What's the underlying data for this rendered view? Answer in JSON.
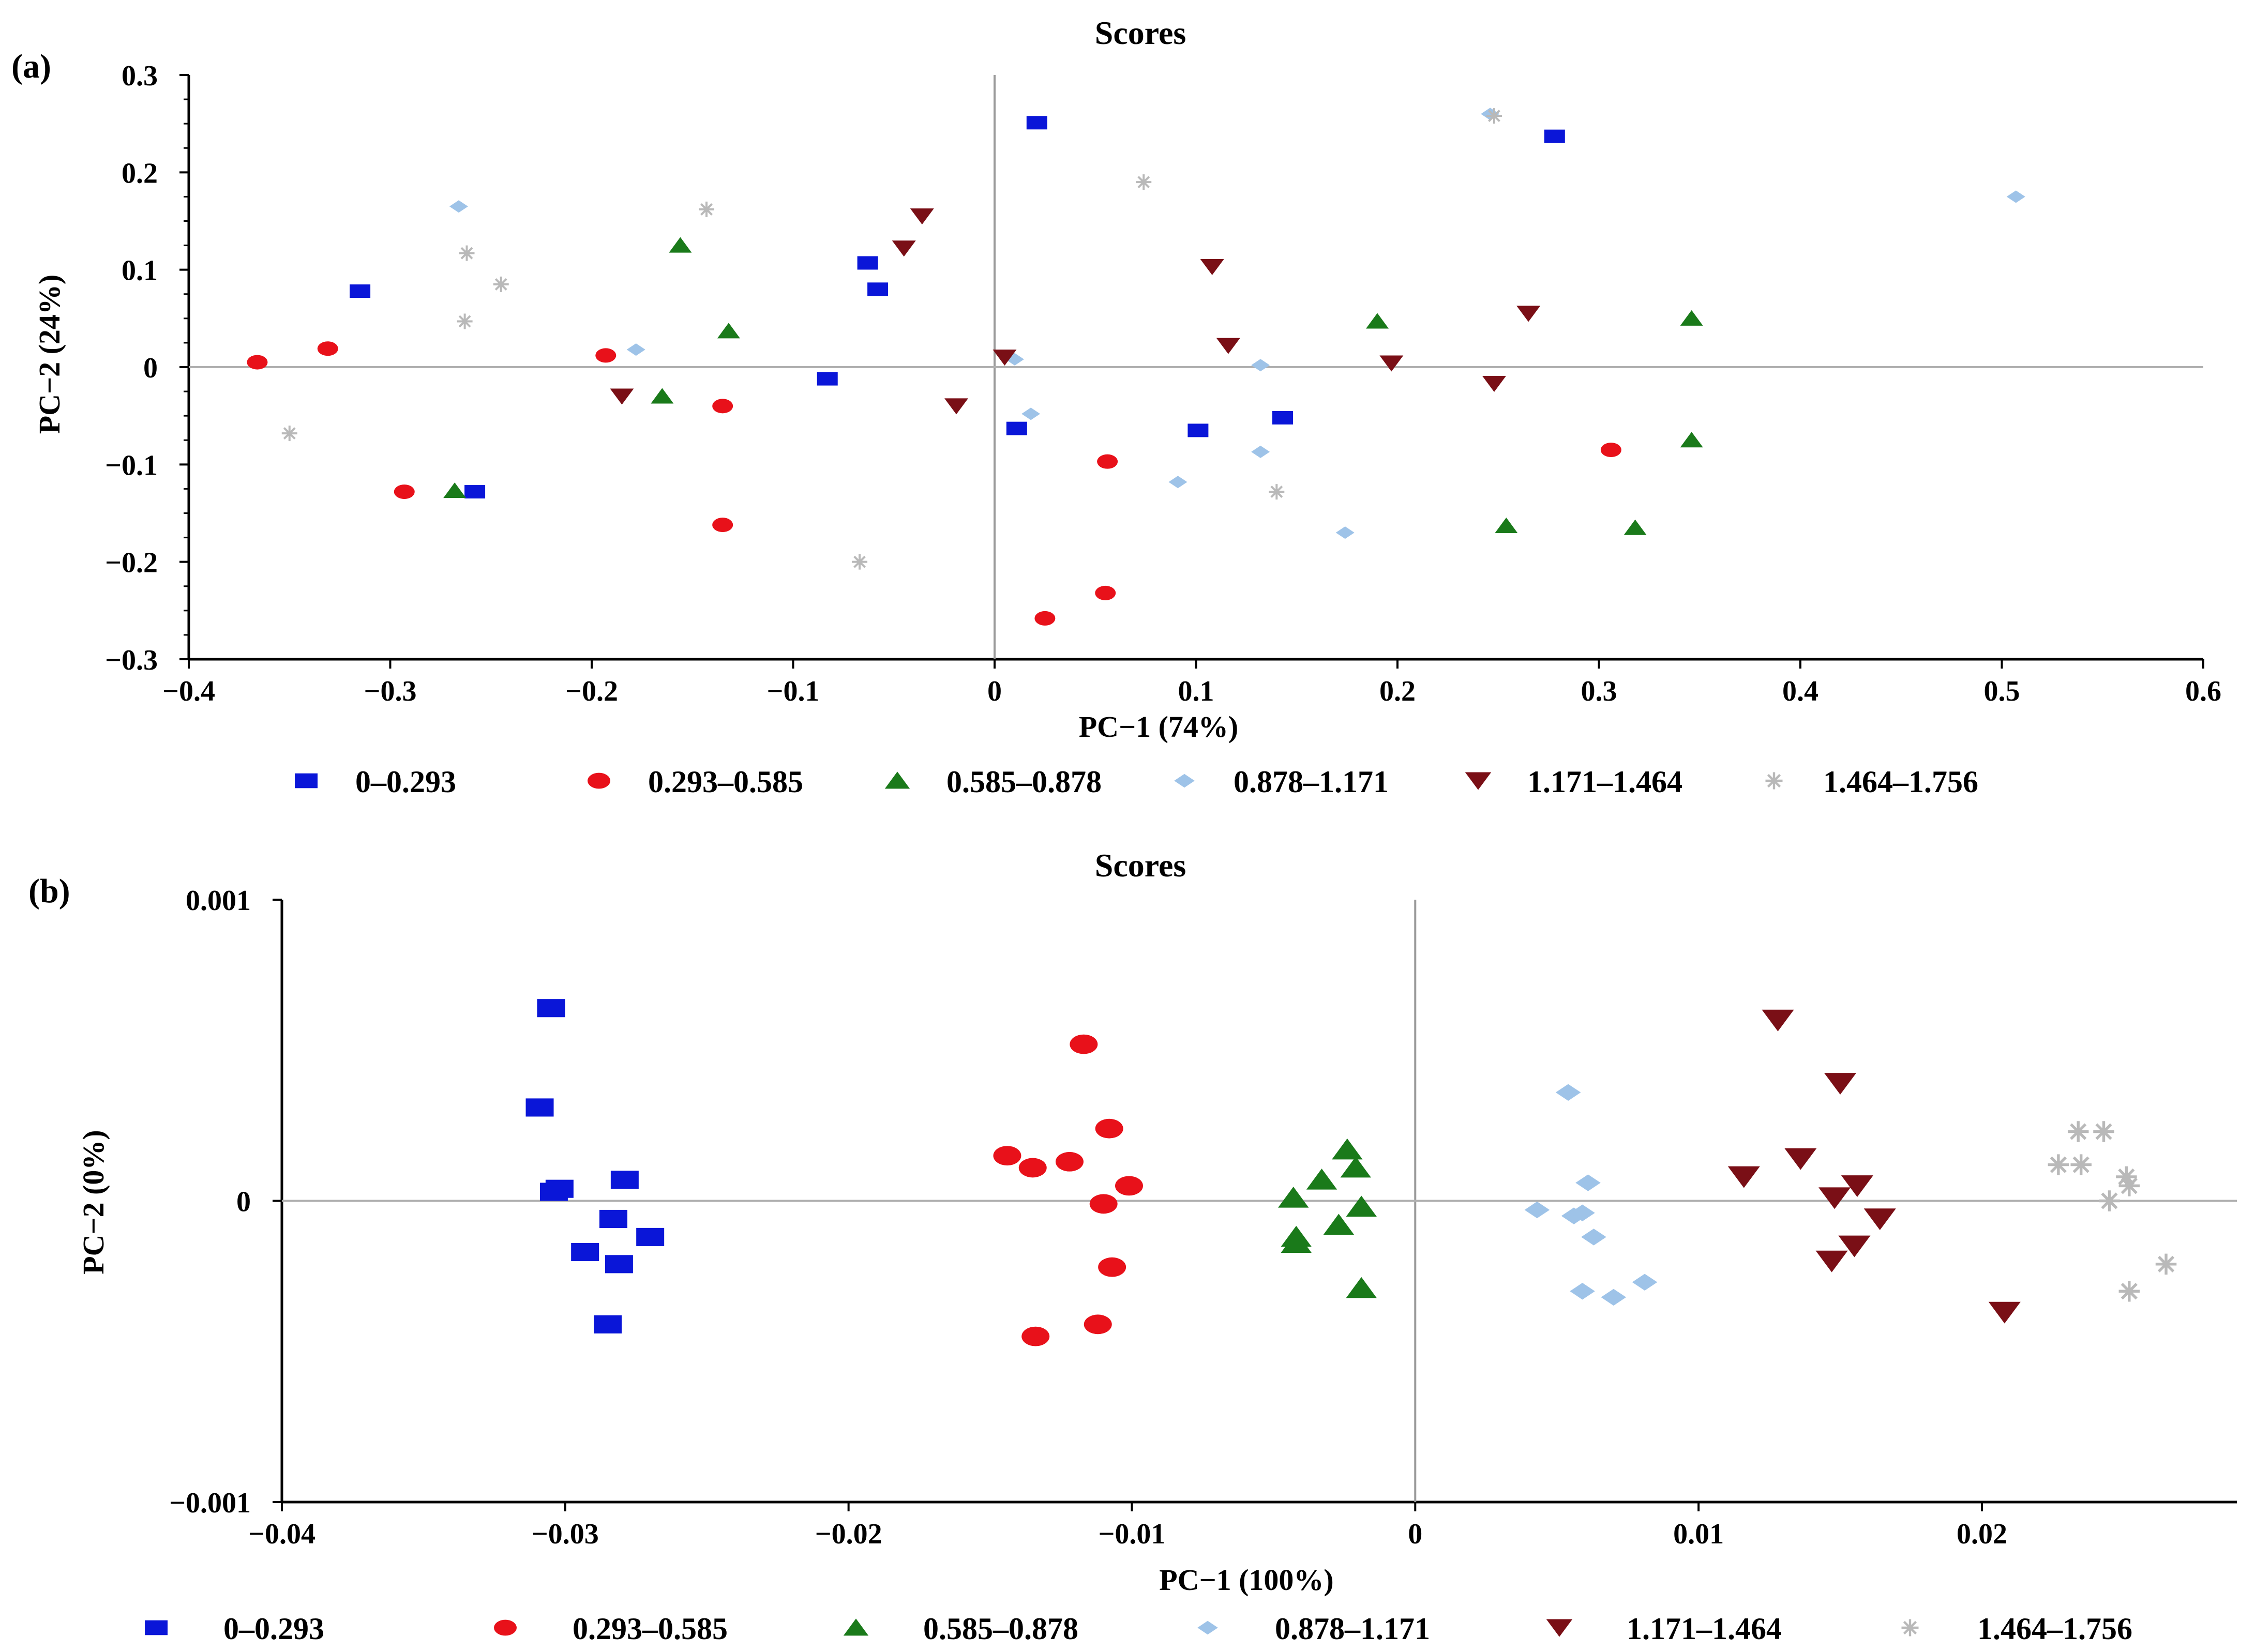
{
  "chart_data": [
    {
      "panel": "(a)",
      "type": "scatter",
      "title": "Scores",
      "xlabel": "PC−1 (74%)",
      "ylabel": "PC−2 (24%)",
      "xlim": [
        -0.4,
        0.6
      ],
      "ylim": [
        -0.3,
        0.3
      ],
      "xticks": [
        -0.4,
        -0.3,
        -0.2,
        -0.1,
        0,
        0.1,
        0.2,
        0.3,
        0.4,
        0.5,
        0.6
      ],
      "xtick_labels": [
        "−0.4",
        "−0.3",
        "−0.2",
        "−0.1",
        "0",
        "0.1",
        "0.2",
        "0.3",
        "0.4",
        "0.5",
        "0.6"
      ],
      "yticks": [
        0.3,
        0.2,
        0.1,
        0,
        -0.1,
        -0.2,
        -0.3
      ],
      "ytick_labels": [
        "0.3",
        "0.2",
        "0.1",
        "0",
        "−0.1",
        "−0.2",
        "−0.3"
      ],
      "grid": false,
      "legend_position": "bottom",
      "series": [
        {
          "name": "0–0.293",
          "marker": "square",
          "color": "#0a16d8",
          "points": [
            [
              -0.315,
              0.078
            ],
            [
              -0.258,
              -0.128
            ],
            [
              -0.083,
              -0.012
            ],
            [
              -0.063,
              0.107
            ],
            [
              -0.058,
              0.08
            ],
            [
              0.021,
              0.251
            ],
            [
              0.011,
              -0.063
            ],
            [
              0.101,
              -0.065
            ],
            [
              0.143,
              -0.052
            ],
            [
              0.278,
              0.237
            ]
          ]
        },
        {
          "name": "0.293–0.585",
          "marker": "ellipse",
          "color": "#e8111a",
          "points": [
            [
              -0.366,
              0.005
            ],
            [
              -0.331,
              0.019
            ],
            [
              -0.293,
              -0.128
            ],
            [
              -0.193,
              0.012
            ],
            [
              -0.135,
              -0.04
            ],
            [
              -0.135,
              -0.162
            ],
            [
              0.025,
              -0.258
            ],
            [
              0.055,
              -0.232
            ],
            [
              0.056,
              -0.097
            ],
            [
              0.306,
              -0.085
            ]
          ]
        },
        {
          "name": "0.585–0.878",
          "marker": "triangle-up",
          "color": "#1a7a1a",
          "points": [
            [
              -0.268,
              -0.127
            ],
            [
              -0.165,
              -0.03
            ],
            [
              -0.156,
              0.125
            ],
            [
              -0.132,
              0.037
            ],
            [
              0.19,
              0.047
            ],
            [
              0.254,
              -0.163
            ],
            [
              0.318,
              -0.165
            ],
            [
              0.346,
              0.05
            ],
            [
              0.346,
              -0.075
            ]
          ]
        },
        {
          "name": "0.878–1.171",
          "marker": "diamond",
          "color": "#9ec3e8",
          "points": [
            [
              -0.266,
              0.165
            ],
            [
              -0.178,
              0.018
            ],
            [
              0.01,
              0.008
            ],
            [
              0.018,
              -0.048
            ],
            [
              0.091,
              -0.118
            ],
            [
              0.132,
              0.002
            ],
            [
              0.132,
              -0.087
            ],
            [
              0.174,
              -0.17
            ],
            [
              0.246,
              0.26
            ],
            [
              0.507,
              0.175
            ]
          ]
        },
        {
          "name": "1.171–1.464",
          "marker": "triangle-down",
          "color": "#7a0f16",
          "points": [
            [
              -0.185,
              -0.03
            ],
            [
              -0.045,
              0.122
            ],
            [
              -0.036,
              0.155
            ],
            [
              -0.019,
              -0.04
            ],
            [
              0.005,
              0.01
            ],
            [
              0.108,
              0.103
            ],
            [
              0.116,
              0.022
            ],
            [
              0.197,
              0.004
            ],
            [
              0.248,
              -0.017
            ],
            [
              0.265,
              0.055
            ]
          ]
        },
        {
          "name": "1.464–1.756",
          "marker": "star",
          "color": "#b9b9b9",
          "points": [
            [
              -0.35,
              -0.068
            ],
            [
              -0.262,
              0.117
            ],
            [
              -0.263,
              0.047
            ],
            [
              -0.245,
              0.085
            ],
            [
              -0.143,
              0.162
            ],
            [
              -0.067,
              -0.2
            ],
            [
              0.074,
              0.19
            ],
            [
              0.14,
              -0.128
            ],
            [
              0.248,
              0.258
            ]
          ]
        }
      ]
    },
    {
      "panel": "(b)",
      "type": "scatter",
      "title": "Scores",
      "xlabel": "PC−1 (100%)",
      "ylabel": "PC−2 (0%)",
      "xlim": [
        -0.04,
        0.029
      ],
      "ylim": [
        -0.001,
        0.001
      ],
      "xticks": [
        -0.04,
        -0.03,
        -0.02,
        -0.01,
        0,
        0.01,
        0.02
      ],
      "xtick_labels": [
        "−0.04",
        "−0.03",
        "−0.02",
        "−0.01",
        "0",
        "0.01",
        "0.02"
      ],
      "yticks": [
        0.001,
        0,
        -0.001
      ],
      "ytick_labels": [
        "0.001",
        "0",
        "−0.001"
      ],
      "grid": false,
      "legend_position": "bottom",
      "series": [
        {
          "name": "0–0.293",
          "marker": "square",
          "color": "#0a16d8",
          "points": [
            [
              -0.0305,
              0.00064
            ],
            [
              -0.0309,
              0.00031
            ],
            [
              -0.0304,
              3e-05
            ],
            [
              -0.0302,
              4e-05
            ],
            [
              -0.0279,
              7e-05
            ],
            [
              -0.0283,
              -6e-05
            ],
            [
              -0.0293,
              -0.00017
            ],
            [
              -0.0281,
              -0.00021
            ],
            [
              -0.027,
              -0.00012
            ],
            [
              -0.0285,
              -0.00041
            ]
          ]
        },
        {
          "name": "0.293–0.585",
          "marker": "ellipse",
          "color": "#e8111a",
          "points": [
            [
              -0.0117,
              0.00052
            ],
            [
              -0.0108,
              0.00024
            ],
            [
              -0.0144,
              0.00015
            ],
            [
              -0.0135,
              0.00011
            ],
            [
              -0.0122,
              0.00013
            ],
            [
              -0.0101,
              5e-05
            ],
            [
              -0.011,
              -1e-05
            ],
            [
              -0.0107,
              -0.00022
            ],
            [
              -0.0112,
              -0.00041
            ],
            [
              -0.0134,
              -0.00045
            ]
          ]
        },
        {
          "name": "0.585–0.878",
          "marker": "triangle-up",
          "color": "#1a7a1a",
          "points": [
            [
              -0.0024,
              0.00017
            ],
            [
              -0.0021,
              0.00011
            ],
            [
              -0.0033,
              7e-05
            ],
            [
              -0.0043,
              1e-05
            ],
            [
              -0.0019,
              -2e-05
            ],
            [
              -0.0027,
              -8e-05
            ],
            [
              -0.0042,
              -0.00012
            ],
            [
              -0.0042,
              -0.00014
            ],
            [
              -0.0019,
              -0.00029
            ]
          ]
        },
        {
          "name": "0.878–1.171",
          "marker": "diamond",
          "color": "#9ec3e8",
          "points": [
            [
              0.0054,
              0.00036
            ],
            [
              0.0061,
              6e-05
            ],
            [
              0.0043,
              -3e-05
            ],
            [
              0.0056,
              -5e-05
            ],
            [
              0.0059,
              -4e-05
            ],
            [
              0.0063,
              -0.00012
            ],
            [
              0.0081,
              -0.00027
            ],
            [
              0.0059,
              -0.0003
            ],
            [
              0.007,
              -0.00032
            ]
          ]
        },
        {
          "name": "1.171–1.464",
          "marker": "triangle-down",
          "color": "#7a0f16",
          "points": [
            [
              0.0128,
              0.0006
            ],
            [
              0.015,
              0.00039
            ],
            [
              0.0136,
              0.00014
            ],
            [
              0.0116,
              8e-05
            ],
            [
              0.0156,
              5e-05
            ],
            [
              0.0148,
              1e-05
            ],
            [
              0.0164,
              -6e-05
            ],
            [
              0.0155,
              -0.00015
            ],
            [
              0.0147,
              -0.0002
            ],
            [
              0.0208,
              -0.00037
            ]
          ]
        },
        {
          "name": "1.464–1.756",
          "marker": "star",
          "color": "#b9b9b9",
          "points": [
            [
              0.0234,
              0.00023
            ],
            [
              0.0243,
              0.00023
            ],
            [
              0.0227,
              0.00012
            ],
            [
              0.0235,
              0.00012
            ],
            [
              0.0251,
              8e-05
            ],
            [
              0.0252,
              5e-05
            ],
            [
              0.0245,
              0.0
            ],
            [
              0.0265,
              -0.00021
            ],
            [
              0.0252,
              -0.0003
            ]
          ]
        }
      ]
    }
  ]
}
